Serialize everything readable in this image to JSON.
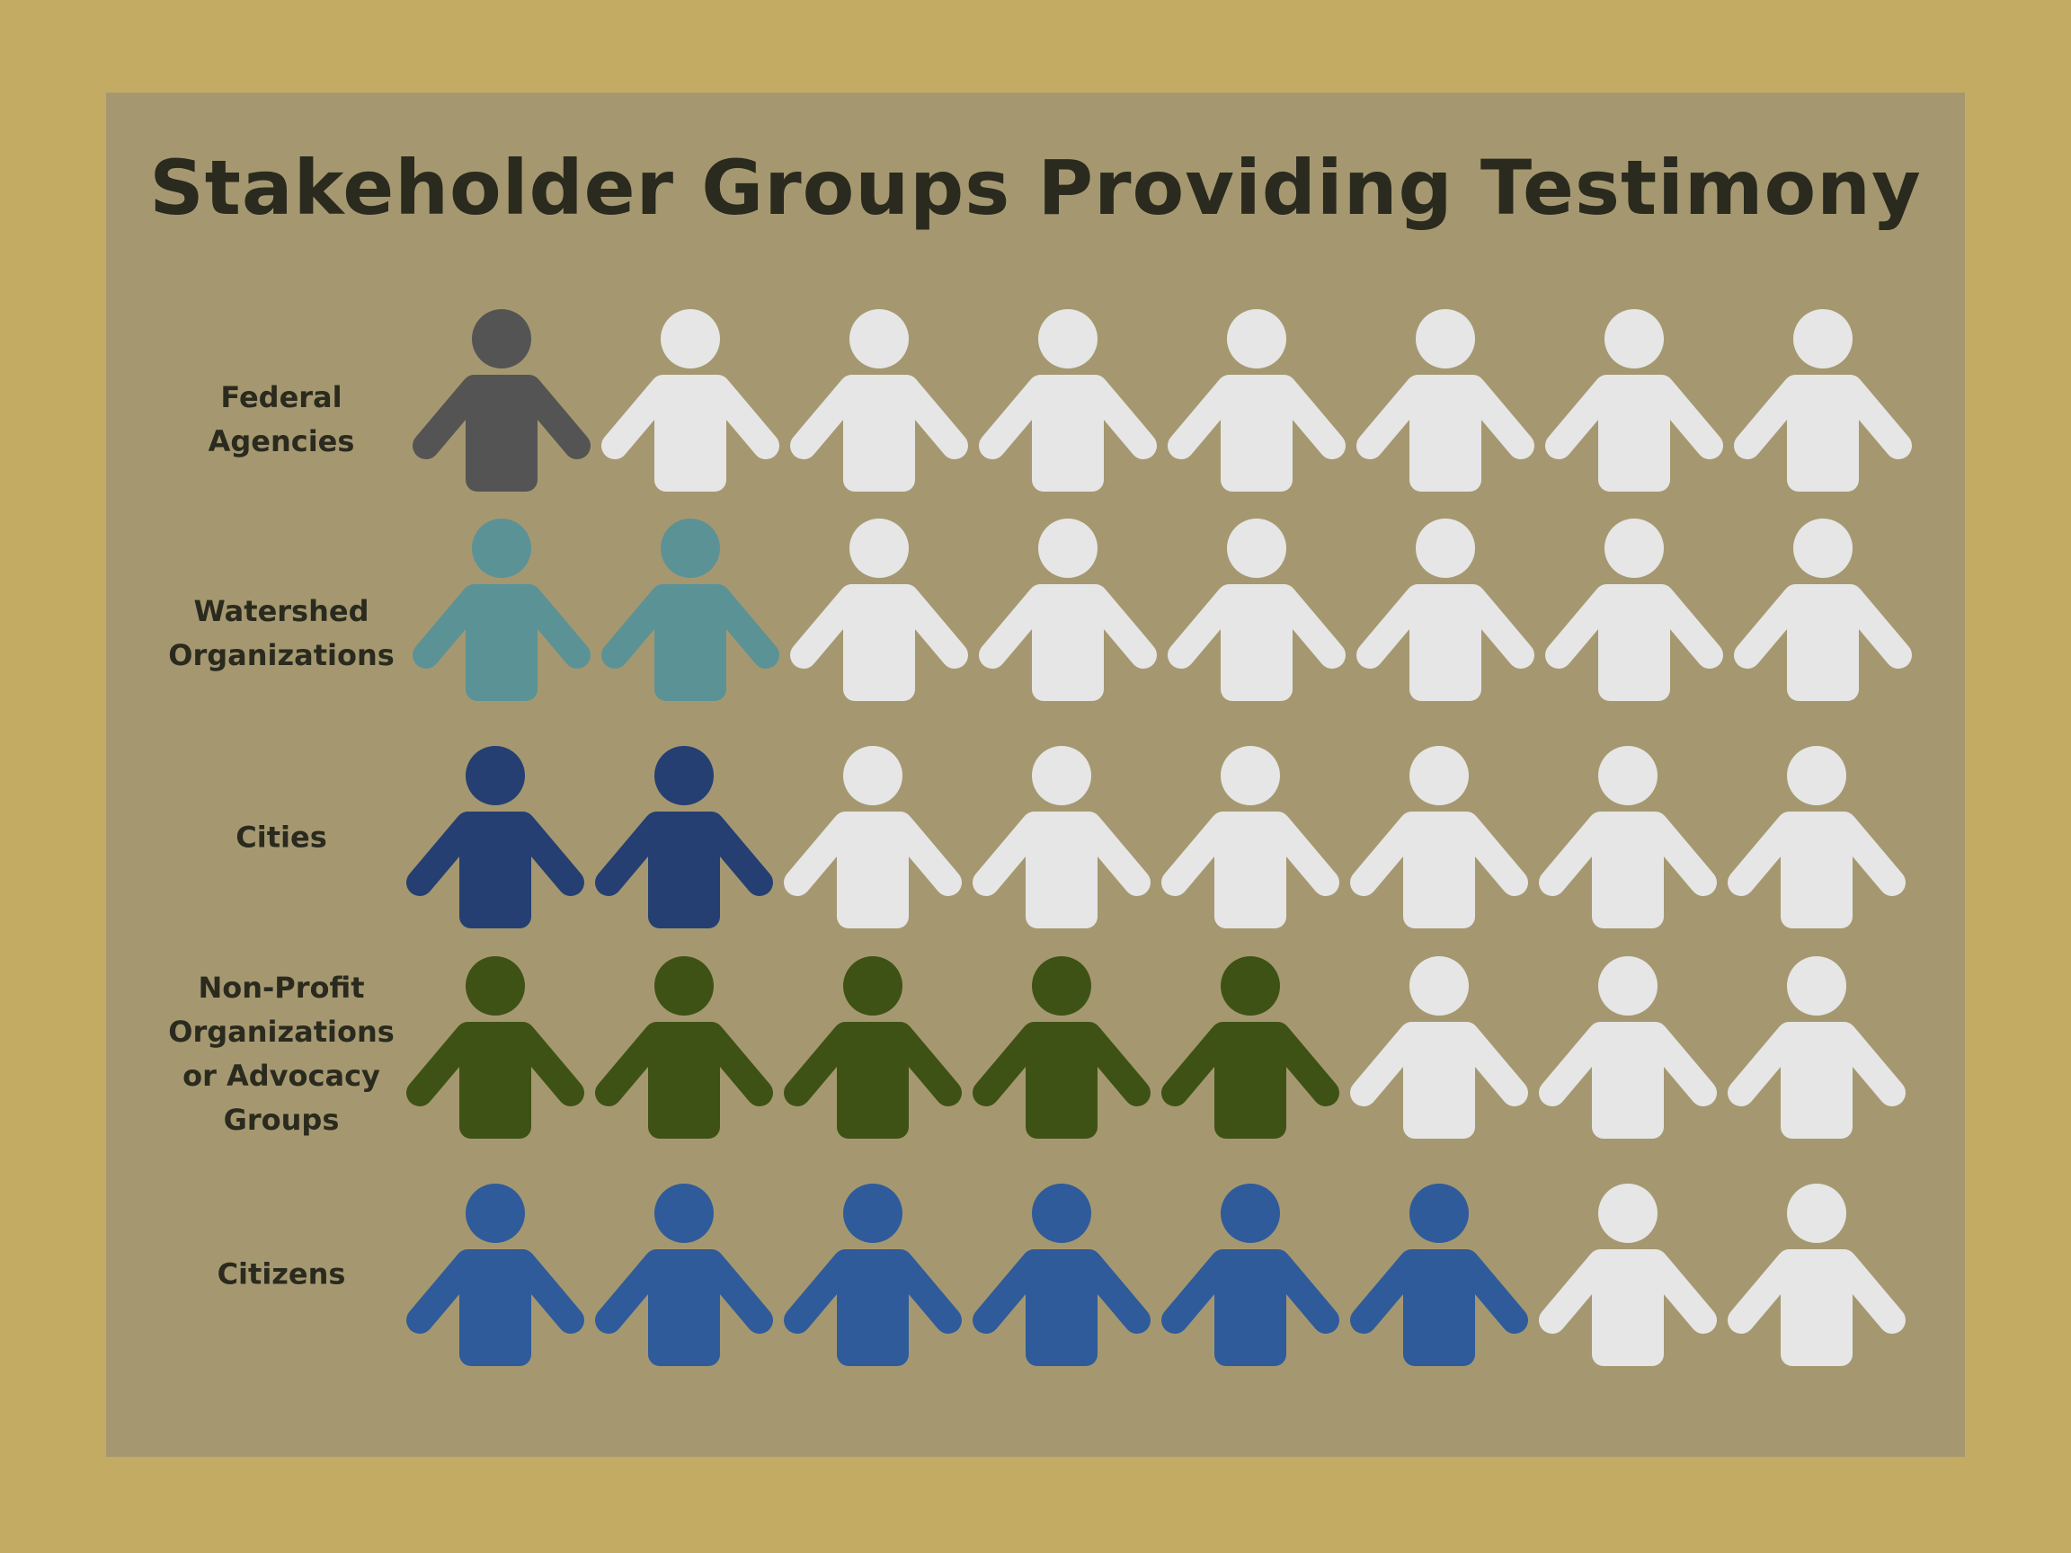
{
  "chart_data": {
    "type": "pictogram",
    "title": "Stakeholder Groups Providing Testimony",
    "icon": "person-icon",
    "icons_per_row": 8,
    "inactive_color": "#e6e6e6",
    "categories": [
      "Federal Agencies",
      "Watershed Organizations",
      "Cities",
      "Non-Profit Organizations or Advocacy Groups",
      "Citizens"
    ],
    "values": [
      1,
      2,
      2,
      5,
      6
    ],
    "colors": [
      "#545454",
      "#5b9296",
      "#253f73",
      "#3f5216",
      "#2f5b9a"
    ],
    "labels_display": [
      "Federal\nAgencies",
      "Watershed\nOrganizations",
      "Cities",
      "Non-Profit\nOrganizations\nor Advocacy\nGroups",
      "Citizens"
    ]
  }
}
